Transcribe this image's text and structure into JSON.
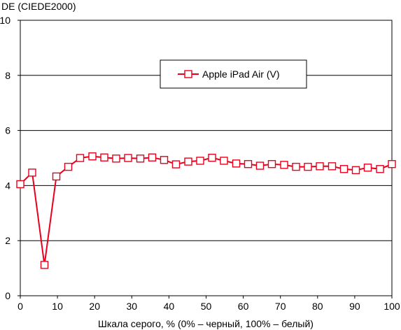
{
  "chart_data": {
    "type": "line",
    "title": "",
    "ylabel": "DE (CIEDE2000)",
    "xlabel": "Шкала серого, % (0% – черный, 100% – белый)",
    "xlim": [
      0,
      100
    ],
    "ylim": [
      0,
      10
    ],
    "x_ticks": [
      0,
      10,
      20,
      30,
      40,
      50,
      60,
      70,
      80,
      90,
      100
    ],
    "y_ticks": [
      0,
      2,
      4,
      6,
      8,
      10
    ],
    "x_tick_labels": [
      "0",
      "10",
      "20",
      "30",
      "40",
      "50",
      "60",
      "70",
      "80",
      "90",
      "100"
    ],
    "y_tick_labels": [
      "0",
      "2",
      "4",
      "6",
      "8",
      "10"
    ],
    "grid": "horizontal",
    "legend": {
      "position": "top-center",
      "entries": [
        "Apple iPad Air (V)"
      ]
    },
    "series": [
      {
        "name": "Apple iPad Air (V)",
        "color": "#e8001c",
        "marker": "open-square",
        "x": [
          0,
          3.2,
          6.5,
          9.7,
          12.9,
          16.1,
          19.4,
          22.6,
          25.8,
          29.0,
          32.3,
          35.5,
          38.7,
          41.9,
          45.2,
          48.4,
          51.6,
          54.8,
          58.1,
          61.3,
          64.5,
          67.7,
          71.0,
          74.2,
          77.4,
          80.6,
          83.9,
          87.1,
          90.3,
          93.5,
          96.8,
          100
        ],
        "y": [
          4.05,
          4.47,
          1.12,
          4.33,
          4.68,
          5.0,
          5.06,
          5.02,
          4.98,
          5.0,
          4.98,
          5.02,
          4.93,
          4.77,
          4.87,
          4.9,
          5.01,
          4.9,
          4.8,
          4.78,
          4.72,
          4.78,
          4.75,
          4.68,
          4.68,
          4.7,
          4.7,
          4.6,
          4.56,
          4.65,
          4.6,
          4.78
        ]
      }
    ]
  }
}
